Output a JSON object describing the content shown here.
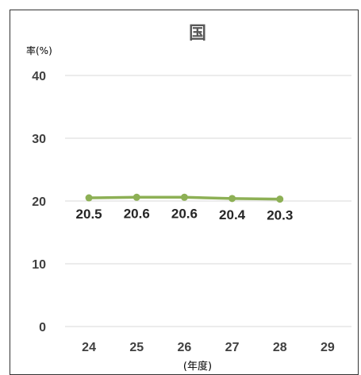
{
  "chart_data": {
    "type": "line",
    "title": "国",
    "ylabel": "率(%)",
    "xlabel": "(年度)",
    "categories": [
      "24",
      "25",
      "26",
      "27",
      "28",
      "29"
    ],
    "series": [
      {
        "values": [
          20.5,
          20.6,
          20.6,
          20.4,
          20.3,
          null
        ]
      }
    ],
    "data_labels": [
      "20.5",
      "20.6",
      "20.6",
      "20.4",
      "20.3"
    ],
    "yticks": [
      "0",
      "10",
      "20",
      "30",
      "40"
    ],
    "ylim": [
      0,
      40
    ],
    "grid": true,
    "legend": "none",
    "colors": {
      "line": "#8db055",
      "grid": "#d9d9d9",
      "frame": "#333333"
    }
  }
}
